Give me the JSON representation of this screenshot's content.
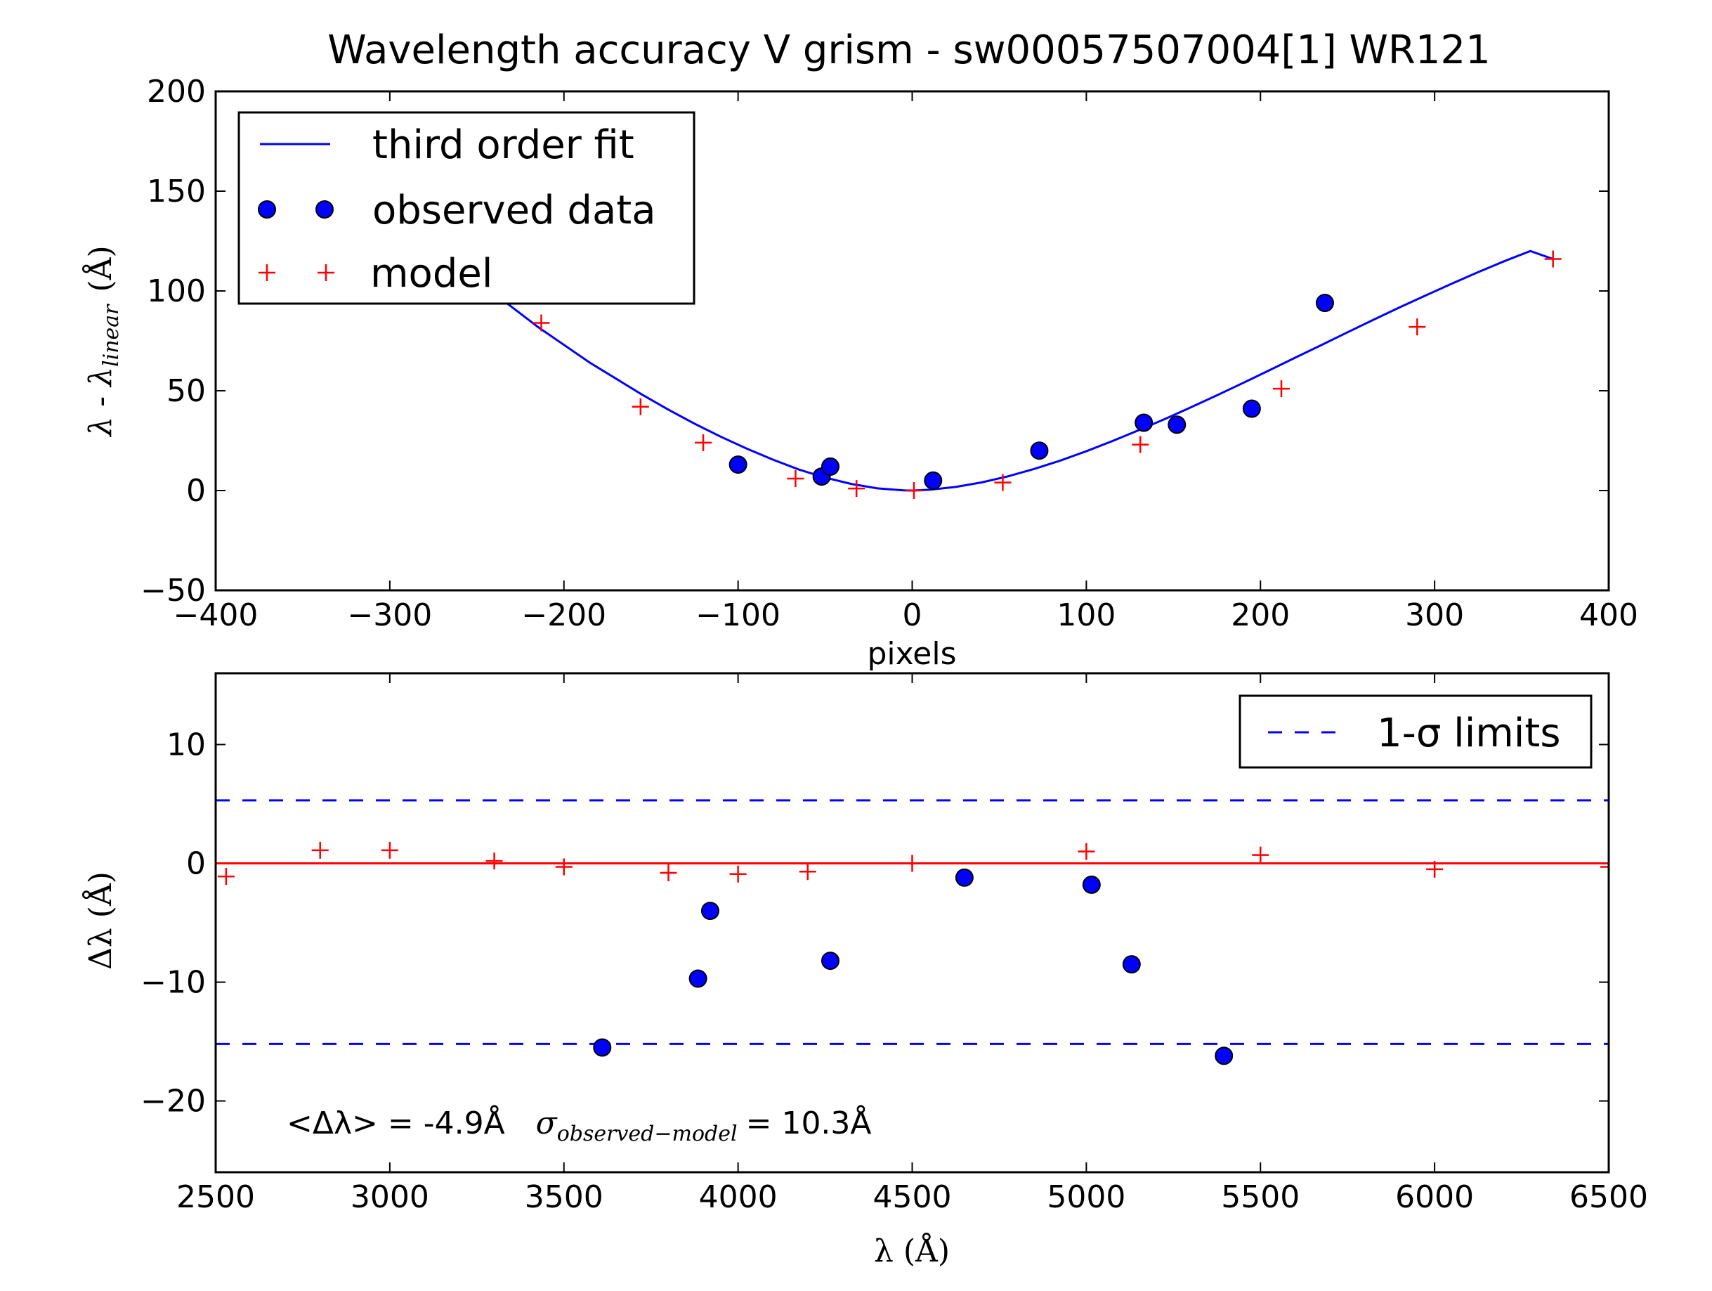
{
  "title": "Wavelength accuracy V grism - sw00057507004[1] WR121",
  "colors": {
    "fit": "#0000ff",
    "observed": "#0000ff",
    "model": "#ff0000",
    "limits": "#0000ff",
    "zero": "#ff0000"
  },
  "chart_data": [
    {
      "type": "scatter",
      "xlabel": "pixels",
      "ylabel": "λ - λ",
      "ylabel_subscript": "linear",
      "ylabel_unit": "(Å)",
      "xlim": [
        -400,
        400
      ],
      "ylim": [
        -50,
        200
      ],
      "xticks": [
        "−400",
        "−300",
        "−200",
        "−100",
        "0",
        "100",
        "200",
        "300",
        "400"
      ],
      "yticks": [
        "−50",
        "0",
        "50",
        "100",
        "150",
        "200"
      ],
      "legend": {
        "placement": "upper-left",
        "entries": [
          "third order fit",
          "observed data",
          "model"
        ]
      },
      "series": [
        {
          "name": "third order fit",
          "kind": "line",
          "x": [
            -245,
            -230,
            -215,
            -200,
            -185,
            -170,
            -155,
            -140,
            -125,
            -110,
            -95,
            -80,
            -65,
            -50,
            -35,
            -20,
            -5,
            0,
            10,
            25,
            40,
            55,
            70,
            85,
            100,
            115,
            130,
            145,
            160,
            175,
            190,
            205,
            220,
            235,
            250,
            265,
            280,
            295,
            310,
            325,
            340,
            355,
            368
          ],
          "y": [
            102,
            92,
            82,
            73,
            64,
            56,
            48,
            40.5,
            33.5,
            27,
            21,
            15.5,
            10.5,
            6.5,
            3.3,
            1.1,
            0.1,
            0,
            0.4,
            1.8,
            4.1,
            7.1,
            10.8,
            15,
            19.7,
            24.8,
            30.2,
            35.8,
            41.7,
            47.7,
            53.9,
            60.2,
            66.6,
            72.9,
            79.3,
            85.6,
            91.8,
            97.8,
            103.7,
            109.4,
            114.9,
            120,
            116
          ]
        },
        {
          "name": "observed data",
          "kind": "scatter",
          "x": [
            -100,
            -52,
            -47,
            12,
            73,
            133,
            152,
            195,
            237
          ],
          "y": [
            13,
            7,
            12,
            5,
            20,
            34,
            33,
            41,
            94
          ]
        },
        {
          "name": "model",
          "kind": "marker",
          "x": [
            -213,
            -156,
            -120,
            -67,
            -32,
            1,
            52,
            131,
            212,
            290,
            368
          ],
          "y": [
            84,
            42,
            24,
            6,
            1,
            0,
            4,
            23,
            51,
            82,
            116
          ]
        }
      ]
    },
    {
      "type": "scatter",
      "xlabel": "λ (Å)",
      "ylabel": "Δλ (Å)",
      "xlim": [
        2500,
        6500
      ],
      "ylim": [
        -26,
        16
      ],
      "xticks": [
        "2500",
        "3000",
        "3500",
        "4000",
        "4500",
        "5000",
        "5500",
        "6000",
        "6500"
      ],
      "yticks": [
        "−20",
        "−10",
        "0",
        "10"
      ],
      "legend": {
        "placement": "upper-right",
        "entries": [
          "1-σ limits"
        ]
      },
      "sigma_limits": [
        5.3,
        -15.2
      ],
      "zero_line": 0,
      "annotation": {
        "mean": "<Δλ> = -4.9Å",
        "sigma_symbol": "σ",
        "sigma_sub": "observed−model",
        "sigma_value": "= 10.3Å"
      },
      "series": [
        {
          "name": "observed data",
          "kind": "scatter",
          "x": [
            3610,
            3885,
            3920,
            4265,
            4650,
            5015,
            5130,
            5395
          ],
          "y": [
            -15.5,
            -9.7,
            -4,
            -8.2,
            -1.2,
            -1.8,
            -8.5,
            -16.2
          ]
        },
        {
          "name": "model",
          "kind": "marker",
          "x": [
            2530,
            2800,
            3000,
            3300,
            3500,
            3800,
            4000,
            4200,
            4500,
            5000,
            5500,
            6000,
            6500
          ],
          "y": [
            -1.1,
            1.1,
            1.1,
            0.2,
            -0.3,
            -0.8,
            -0.9,
            -0.7,
            0,
            1,
            0.7,
            -0.5,
            -0.3
          ]
        }
      ]
    }
  ]
}
